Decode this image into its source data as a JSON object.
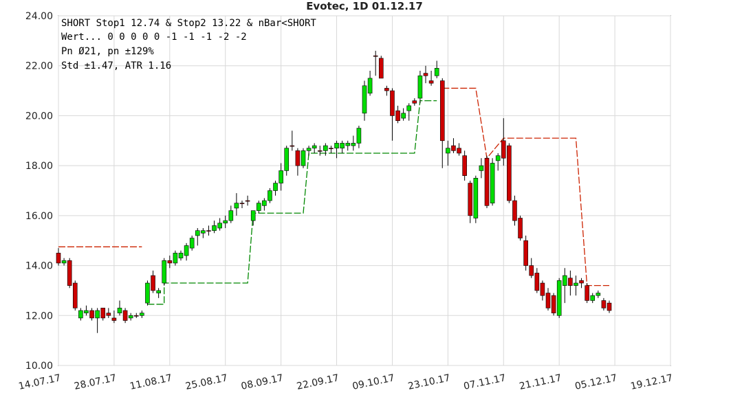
{
  "chart_data": {
    "type": "candlestick",
    "title": "Evotec, 1D 01.12.17",
    "annotations": [
      "SHORT Stop1 12.74 & Stop2 13.22 & nBar<SHORT",
      "Wert... 0  0  0  0  0 -1 -1 -1 -2 -2",
      "Pn  Ø21, pn ±129%",
      "Std ±1.47, ATR 1.16"
    ],
    "xlim": [
      0,
      110
    ],
    "xticks": [
      {
        "value": 0,
        "label": "14.07.17"
      },
      {
        "value": 10,
        "label": "28.07.17"
      },
      {
        "value": 20,
        "label": "11.08.17"
      },
      {
        "value": 30,
        "label": "25.08.17"
      },
      {
        "value": 40,
        "label": "08.09.17"
      },
      {
        "value": 50,
        "label": "22.09.17"
      },
      {
        "value": 60,
        "label": "09.10.17"
      },
      {
        "value": 70,
        "label": "23.10.17"
      },
      {
        "value": 80,
        "label": "07.11.17"
      },
      {
        "value": 90,
        "label": "21.11.17"
      },
      {
        "value": 100,
        "label": "05.12.17"
      },
      {
        "value": 110,
        "label": "19.12.17"
      }
    ],
    "ylim": [
      10,
      24
    ],
    "yticks": [
      {
        "value": 10,
        "label": "10.00"
      },
      {
        "value": 12,
        "label": "12.00"
      },
      {
        "value": 14,
        "label": "14.00"
      },
      {
        "value": 16,
        "label": "16.00"
      },
      {
        "value": 18,
        "label": "18.00"
      },
      {
        "value": 20,
        "label": "20.00"
      },
      {
        "value": 22,
        "label": "22.00"
      },
      {
        "value": 24,
        "label": "24.00"
      }
    ],
    "grid": true,
    "up_color": "#00dd00",
    "down_color": "#cc0000",
    "open": [
      14.5,
      14.1,
      14.2,
      13.3,
      11.9,
      12.1,
      12.2,
      11.9,
      12.3,
      12.1,
      11.9,
      12.1,
      12.2,
      11.9,
      12.0,
      12.0,
      12.5,
      13.6,
      12.9,
      13.3,
      14.2,
      14.1,
      14.3,
      14.4,
      14.7,
      15.2,
      15.3,
      15.4,
      15.4,
      15.5,
      15.7,
      15.8,
      16.3,
      16.5,
      16.6,
      15.8,
      16.2,
      16.4,
      16.6,
      17.0,
      17.3,
      17.8,
      18.8,
      18.6,
      18.0,
      18.6,
      18.7,
      18.6,
      18.6,
      18.7,
      18.7,
      18.7,
      18.8,
      18.8,
      18.9,
      20.1,
      20.9,
      22.4,
      22.3,
      21.1,
      21.0,
      20.2,
      19.9,
      20.2,
      20.6,
      20.7,
      21.7,
      21.4,
      21.6,
      21.4,
      18.5,
      18.8,
      18.7,
      18.4,
      17.3,
      15.9,
      17.8,
      18.3,
      16.5,
      18.2,
      19.0,
      18.8,
      16.6,
      15.9,
      15.0,
      14.0,
      13.7,
      13.3,
      12.9,
      12.8,
      12.0,
      13.2,
      13.5,
      13.2,
      13.4,
      13.2,
      12.6,
      12.8,
      12.6,
      12.5
    ],
    "high": [
      14.7,
      14.3,
      14.3,
      13.4,
      12.3,
      12.4,
      12.3,
      12.3,
      12.3,
      12.3,
      12.2,
      12.6,
      12.3,
      12.1,
      12.1,
      12.2,
      13.4,
      13.8,
      13.1,
      14.3,
      14.4,
      14.6,
      14.6,
      14.9,
      15.2,
      15.5,
      15.5,
      15.6,
      15.8,
      15.9,
      16.0,
      16.4,
      16.9,
      16.6,
      16.8,
      16.2,
      16.6,
      16.7,
      17.1,
      17.4,
      18.1,
      18.8,
      19.4,
      18.7,
      18.7,
      18.8,
      18.9,
      18.8,
      18.9,
      18.8,
      19.0,
      19.0,
      19.0,
      19.2,
      19.6,
      21.4,
      21.8,
      22.6,
      22.4,
      21.2,
      21.1,
      20.4,
      20.3,
      20.5,
      20.7,
      21.8,
      22.0,
      21.8,
      22.2,
      21.5,
      19.0,
      19.1,
      18.9,
      18.6,
      17.4,
      17.6,
      18.3,
      18.4,
      18.3,
      18.5,
      19.9,
      18.9,
      16.8,
      16.0,
      15.2,
      14.3,
      13.9,
      13.4,
      13.1,
      12.9,
      13.5,
      13.9,
      13.8,
      13.6,
      13.5,
      13.3,
      12.9,
      13.0,
      12.7,
      12.6
    ],
    "low": [
      14.0,
      14.0,
      13.1,
      12.2,
      11.8,
      12.0,
      11.8,
      11.3,
      11.8,
      11.9,
      11.7,
      12.0,
      11.7,
      11.8,
      11.9,
      11.9,
      12.4,
      12.9,
      12.7,
      13.2,
      13.9,
      14.0,
      14.2,
      14.2,
      14.6,
      14.8,
      15.1,
      15.2,
      15.3,
      15.4,
      15.5,
      15.7,
      16.0,
      16.3,
      16.4,
      15.6,
      16.1,
      16.2,
      16.5,
      16.8,
      17.0,
      17.6,
      18.6,
      17.6,
      17.9,
      18.4,
      18.5,
      18.4,
      18.4,
      18.5,
      18.3,
      18.5,
      18.6,
      18.6,
      18.7,
      19.8,
      20.8,
      21.6,
      21.5,
      20.8,
      19.0,
      19.7,
      19.8,
      19.8,
      20.4,
      20.5,
      21.3,
      21.2,
      21.5,
      17.9,
      18.0,
      18.5,
      18.4,
      17.4,
      15.7,
      15.7,
      17.5,
      16.3,
      16.4,
      17.8,
      18.0,
      16.5,
      15.6,
      15.0,
      13.8,
      13.5,
      12.9,
      12.6,
      12.2,
      12.0,
      11.9,
      12.5,
      12.8,
      12.8,
      13.1,
      12.5,
      12.5,
      12.7,
      12.2,
      12.1
    ],
    "close": [
      14.1,
      14.2,
      13.2,
      12.3,
      12.2,
      12.2,
      11.9,
      12.2,
      11.9,
      12.0,
      11.8,
      12.3,
      11.8,
      12.0,
      12.0,
      12.1,
      13.3,
      13.0,
      13.0,
      14.2,
      14.1,
      14.5,
      14.5,
      14.8,
      15.1,
      15.4,
      15.4,
      15.4,
      15.6,
      15.7,
      15.8,
      16.2,
      16.5,
      16.5,
      16.6,
      16.2,
      16.5,
      16.6,
      17.0,
      17.3,
      17.8,
      18.7,
      18.8,
      18.0,
      18.6,
      18.7,
      18.8,
      18.6,
      18.8,
      18.7,
      18.9,
      18.9,
      18.9,
      18.9,
      19.5,
      21.2,
      21.5,
      22.4,
      21.5,
      21.0,
      20.0,
      19.8,
      20.1,
      20.4,
      20.5,
      21.6,
      21.6,
      21.3,
      21.9,
      19.0,
      18.7,
      18.6,
      18.5,
      17.6,
      16.0,
      17.5,
      18.0,
      16.4,
      18.1,
      18.4,
      18.3,
      16.6,
      15.8,
      15.1,
      14.0,
      13.6,
      13.0,
      12.8,
      12.3,
      12.1,
      13.4,
      13.6,
      13.2,
      13.3,
      13.3,
      12.6,
      12.8,
      12.9,
      12.3,
      12.2
    ],
    "lines": [
      {
        "color": "#008800",
        "x": [
          16,
          19,
          19,
          34,
          35,
          44,
          45,
          64,
          65,
          68
        ],
        "y": [
          12.45,
          12.45,
          13.3,
          13.3,
          16.1,
          16.1,
          18.5,
          18.5,
          20.6,
          20.6
        ]
      },
      {
        "color": "#cc2200",
        "x": [
          0,
          15,
          16,
          69,
          75,
          77,
          80,
          93,
          95,
          99
        ],
        "y": [
          14.75,
          14.75,
          null,
          21.1,
          21.1,
          18.3,
          19.1,
          19.1,
          13.2,
          13.2
        ]
      }
    ]
  }
}
